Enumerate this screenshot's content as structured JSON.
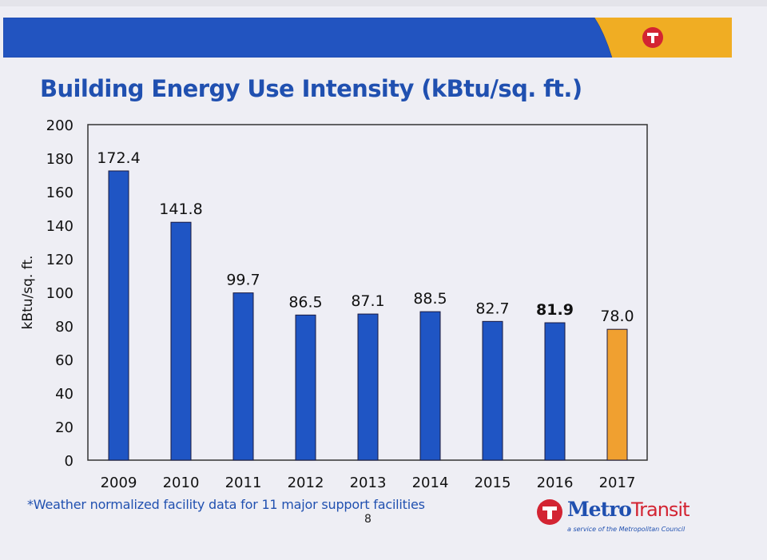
{
  "slide": {
    "title": "Building Energy Use Intensity (kBtu/sq. ft.)",
    "footnote": "*Weather normalized facility data for 11 major support facilities",
    "page_number": "8",
    "logo": {
      "name_part1": "Metro",
      "name_part2": "Transit",
      "tagline": "a service of the Metropolitan Council"
    },
    "colors": {
      "brand_blue": "#2050b0",
      "brand_yellow": "#f0ad23",
      "brand_red": "#d32432"
    }
  },
  "chart_data": {
    "type": "bar",
    "title": "Building Energy Use Intensity (kBtu/sq. ft.)",
    "xlabel": "",
    "ylabel": "kBtu/sq. ft.",
    "ylim": [
      0,
      200
    ],
    "yticks": [
      0,
      20,
      40,
      60,
      80,
      100,
      120,
      140,
      160,
      180,
      200
    ],
    "grid": false,
    "legend": "none",
    "categories": [
      "2009",
      "2010",
      "2011",
      "2012",
      "2013",
      "2014",
      "2015",
      "2016",
      "2017"
    ],
    "values": [
      172.4,
      141.8,
      99.7,
      86.5,
      87.1,
      88.5,
      82.7,
      81.9,
      78.0
    ],
    "data_labels": [
      "172.4",
      "141.8",
      "99.7",
      "86.5",
      "87.1",
      "88.5",
      "82.7",
      "81.9",
      "78.0"
    ],
    "bold_labels": [
      "2016"
    ],
    "bar_colors": [
      "#1f55c4",
      "#1f55c4",
      "#1f55c4",
      "#1f55c4",
      "#1f55c4",
      "#1f55c4",
      "#1f55c4",
      "#1f55c4",
      "#f0a030"
    ],
    "annotation": "*Weather normalized facility data for 11 major support facilities"
  }
}
